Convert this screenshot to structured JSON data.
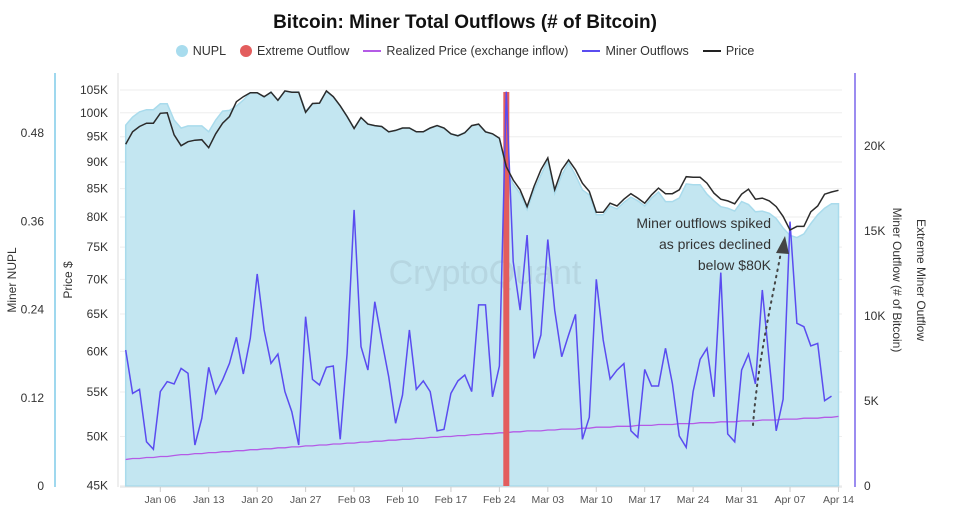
{
  "title": "Bitcoin: Miner Total Outflows (# of Bitcoin)",
  "legend": [
    {
      "label": "NUPL",
      "color": "#a8dcee",
      "marker": "circle"
    },
    {
      "label": "Extreme Outflow",
      "color": "#e35d5d",
      "marker": "circle"
    },
    {
      "label": "Realized Price (exchange inflow)",
      "color": "#b45be6",
      "marker": "line"
    },
    {
      "label": "Miner Outflows",
      "color": "#5a4cf0",
      "marker": "line"
    },
    {
      "label": "Price",
      "color": "#222222",
      "marker": "line"
    }
  ],
  "watermark": "CryptoQuant",
  "annotation": {
    "lines": [
      "Miner outflows spiked",
      "as prices declined",
      "below $80K"
    ]
  },
  "chart_data": {
    "type": "line",
    "title": "Bitcoin: Miner Total Outflows (# of Bitcoin)",
    "axes": {
      "left_nupl": {
        "label": "Miner NUPL",
        "ticks": [
          "0",
          "0.12",
          "0.24",
          "0.36",
          "0.48"
        ],
        "tick_values": [
          0,
          0.12,
          0.24,
          0.36,
          0.48
        ]
      },
      "left_price": {
        "label": "Price $",
        "scale": "log",
        "ticks": [
          "45K",
          "50K",
          "55K",
          "60K",
          "65K",
          "70K",
          "75K",
          "80K",
          "85K",
          "90K",
          "95K",
          "100K",
          "105K"
        ],
        "tick_values": [
          45,
          50,
          55,
          60,
          65,
          70,
          75,
          80,
          85,
          90,
          95,
          100,
          105
        ]
      },
      "right_outflow": {
        "label": "Miner Outflow (# of Bitcoin)",
        "ticks": [
          "0",
          "5K",
          "10K",
          "15K",
          "20K"
        ],
        "tick_values": [
          0,
          5,
          10,
          15,
          20
        ]
      },
      "right_extreme": {
        "label": "Extreme Miner Outflow"
      },
      "x": {
        "ticks": [
          "Jan 06",
          "Jan 13",
          "Jan 20",
          "Jan 27",
          "Feb 03",
          "Feb 10",
          "Feb 17",
          "Feb 24",
          "Mar 03",
          "Mar 10",
          "Mar 17",
          "Mar 24",
          "Mar 31",
          "Apr 07",
          "Apr 14"
        ]
      }
    },
    "grid": true,
    "legend_position": "top",
    "x": [
      "Jan 01",
      "Jan 02",
      "Jan 03",
      "Jan 04",
      "Jan 05",
      "Jan 06",
      "Jan 07",
      "Jan 08",
      "Jan 09",
      "Jan 10",
      "Jan 11",
      "Jan 12",
      "Jan 13",
      "Jan 14",
      "Jan 15",
      "Jan 16",
      "Jan 17",
      "Jan 18",
      "Jan 19",
      "Jan 20",
      "Jan 21",
      "Jan 22",
      "Jan 23",
      "Jan 24",
      "Jan 25",
      "Jan 26",
      "Jan 27",
      "Jan 28",
      "Jan 29",
      "Jan 30",
      "Jan 31",
      "Feb 01",
      "Feb 02",
      "Feb 03",
      "Feb 04",
      "Feb 05",
      "Feb 06",
      "Feb 07",
      "Feb 08",
      "Feb 09",
      "Feb 10",
      "Feb 11",
      "Feb 12",
      "Feb 13",
      "Feb 14",
      "Feb 15",
      "Feb 16",
      "Feb 17",
      "Feb 18",
      "Feb 19",
      "Feb 20",
      "Feb 21",
      "Feb 22",
      "Feb 23",
      "Feb 24",
      "Feb 25",
      "Feb 26",
      "Feb 27",
      "Feb 28",
      "Mar 01",
      "Mar 02",
      "Mar 03",
      "Mar 04",
      "Mar 05",
      "Mar 06",
      "Mar 07",
      "Mar 08",
      "Mar 09",
      "Mar 10",
      "Mar 11",
      "Mar 12",
      "Mar 13",
      "Mar 14",
      "Mar 15",
      "Mar 16",
      "Mar 17",
      "Mar 18",
      "Mar 19",
      "Mar 20",
      "Mar 21",
      "Mar 22",
      "Mar 23",
      "Mar 24",
      "Mar 25",
      "Mar 26",
      "Mar 27",
      "Mar 28",
      "Mar 29",
      "Mar 30",
      "Mar 31",
      "Apr 01",
      "Apr 02",
      "Apr 03",
      "Apr 04",
      "Apr 05",
      "Apr 06",
      "Apr 07",
      "Apr 08",
      "Apr 09",
      "Apr 10",
      "Apr 11",
      "Apr 12",
      "Apr 13",
      "Apr 14"
    ],
    "series": [
      {
        "name": "NUPL",
        "axis": "left_nupl",
        "kind": "area",
        "color": "#c3e6f1",
        "values": [
          0.491,
          0.502,
          0.509,
          0.512,
          0.512,
          0.52,
          0.52,
          0.498,
          0.487,
          0.49,
          0.49,
          0.49,
          0.482,
          0.498,
          0.51,
          0.511,
          0.517,
          0.525,
          0.535,
          0.535,
          0.529,
          0.536,
          0.525,
          0.537,
          0.536,
          0.536,
          0.51,
          0.52,
          0.521,
          0.537,
          0.529,
          0.517,
          0.503,
          0.487,
          0.501,
          0.492,
          0.49,
          0.489,
          0.482,
          0.484,
          0.487,
          0.487,
          0.482,
          0.482,
          0.487,
          0.49,
          0.487,
          0.479,
          0.477,
          0.481,
          0.49,
          0.492,
          0.482,
          0.479,
          0.473,
          0.429,
          0.411,
          0.398,
          0.376,
          0.402,
          0.423,
          0.443,
          0.398,
          0.423,
          0.44,
          0.423,
          0.403,
          0.396,
          0.369,
          0.369,
          0.381,
          0.377,
          0.386,
          0.393,
          0.388,
          0.381,
          0.392,
          0.4,
          0.387,
          0.387,
          0.392,
          0.411,
          0.41,
          0.41,
          0.397,
          0.388,
          0.38,
          0.378,
          0.374,
          0.387,
          0.383,
          0.373,
          0.374,
          0.371,
          0.364,
          0.351,
          0.341,
          0.338,
          0.343,
          0.357,
          0.369,
          0.378,
          0.384,
          0.384
        ]
      },
      {
        "name": "Price",
        "axis": "left_price",
        "unit": "K USD",
        "color": "#2b2b2b",
        "values": [
          93.5,
          96,
          97.1,
          97.8,
          97.8,
          99.9,
          100,
          95.4,
          93.2,
          94,
          94.3,
          94.4,
          92.8,
          95.6,
          97.8,
          99.2,
          102.4,
          103.5,
          104.4,
          104.4,
          103.5,
          104.5,
          102.7,
          104.8,
          104.5,
          104.5,
          100.1,
          102,
          102.1,
          104.8,
          103.5,
          101.5,
          99.2,
          96.7,
          99,
          97.6,
          97.3,
          97.1,
          96,
          96.3,
          96.8,
          96.8,
          96,
          96,
          96.8,
          97.3,
          96.8,
          95.6,
          95.2,
          95.8,
          97.3,
          97.6,
          96,
          95.6,
          94.7,
          89.1,
          86.6,
          84.8,
          81.8,
          85.4,
          88.5,
          90.8,
          84.8,
          88.5,
          90.4,
          88.5,
          86,
          84.5,
          80.8,
          80.8,
          82.4,
          81.9,
          83.1,
          84.1,
          83.3,
          82.4,
          83.9,
          85.1,
          84.1,
          84.1,
          84.8,
          87.2,
          87.1,
          87.1,
          86,
          84.2,
          83.1,
          82.8,
          82.3,
          84,
          84.9,
          83.1,
          83.3,
          82.8,
          81.8,
          80.1,
          77.8,
          78.4,
          78.4,
          80.9,
          81.9,
          84,
          84.4,
          84.7
        ]
      },
      {
        "name": "Realized Price (exchange inflow)",
        "axis": "left_price",
        "unit": "K USD",
        "color": "#b45be6",
        "values": [
          47.6,
          47.7,
          47.7,
          47.8,
          47.8,
          47.9,
          47.9,
          48.0,
          48.1,
          48.1,
          48.2,
          48.2,
          48.3,
          48.3,
          48.4,
          48.4,
          48.5,
          48.5,
          48.6,
          48.6,
          48.7,
          48.7,
          48.8,
          48.8,
          48.9,
          48.9,
          49.0,
          49.0,
          49.1,
          49.1,
          49.2,
          49.2,
          49.3,
          49.3,
          49.4,
          49.4,
          49.5,
          49.5,
          49.6,
          49.6,
          49.7,
          49.7,
          49.8,
          49.8,
          49.9,
          49.9,
          50.0,
          50.0,
          50.1,
          50.1,
          50.2,
          50.2,
          50.3,
          50.3,
          50.4,
          50.4,
          50.5,
          50.5,
          50.6,
          50.6,
          50.6,
          50.7,
          50.7,
          50.8,
          50.8,
          50.8,
          50.9,
          50.9,
          51.0,
          51.0,
          51.0,
          51.1,
          51.1,
          51.1,
          51.2,
          51.2,
          51.2,
          51.3,
          51.3,
          51.3,
          51.4,
          51.4,
          51.4,
          51.5,
          51.5,
          51.5,
          51.6,
          51.6,
          51.6,
          51.7,
          51.7,
          51.7,
          51.8,
          51.8,
          51.8,
          51.9,
          51.9,
          51.9,
          52.0,
          52.0,
          52.0,
          52.1,
          52.1,
          52.2
        ]
      },
      {
        "name": "Miner Outflows",
        "axis": "right_outflow",
        "unit": "K BTC",
        "color": "#5a4cf0",
        "values": [
          8.0,
          5.45,
          5.69,
          2.6,
          2.16,
          5.55,
          6.14,
          6.0,
          6.92,
          6.63,
          2.41,
          3.98,
          6.98,
          5.45,
          6.24,
          7.22,
          8.75,
          6.59,
          8.69,
          12.47,
          9.18,
          7.22,
          7.76,
          5.55,
          4.37,
          2.41,
          9.96,
          6.27,
          5.94,
          6.98,
          7.06,
          2.75,
          7.8,
          16.24,
          8.2,
          6.82,
          10.84,
          8.59,
          6.43,
          3.69,
          5.35,
          9.18,
          5.69,
          6.18,
          5.55,
          3.25,
          3.33,
          5.45,
          6.18,
          6.53,
          5.55,
          10.65,
          10.65,
          5.25,
          7.06,
          23.2,
          13.2,
          10.35,
          14.76,
          7.5,
          8.88,
          14.5,
          10.35,
          7.6,
          8.88,
          10.1,
          2.75,
          4.04,
          12.16,
          8.59,
          6.29,
          6.82,
          7.2,
          3.25,
          2.86,
          6.86,
          5.88,
          5.88,
          8.1,
          6.02,
          2.94,
          2.27,
          5.55,
          7.45,
          8.1,
          5.25,
          12.55,
          3.06,
          2.6,
          6.82,
          7.76,
          6.0,
          11.53,
          7.33,
          3.25,
          5.1,
          15.55,
          9.57,
          9.37,
          8.24,
          8.39,
          5.02,
          5.29,
          null
        ]
      },
      {
        "name": "Extreme Outflow",
        "axis": "right_extreme",
        "kind": "bar",
        "color": "#e35d5d",
        "dates": [
          "Feb 25"
        ]
      }
    ]
  }
}
